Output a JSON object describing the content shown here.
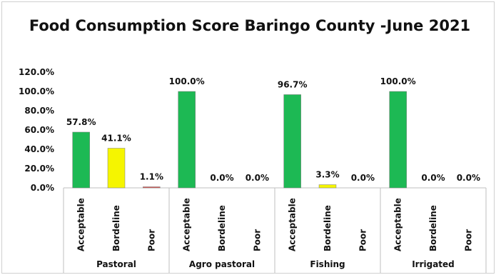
{
  "chart_data": {
    "type": "bar",
    "title": "Food Consumption Score Baringo County -June 2021",
    "ylim": [
      0,
      120
    ],
    "yticks": [
      "0.0%",
      "20.0%",
      "40.0%",
      "60.0%",
      "80.0%",
      "100.0%",
      "120.0%"
    ],
    "groups": [
      {
        "name": "Pastoral",
        "categories": [
          "Acceptable",
          "Bordeline",
          "Poor"
        ],
        "values": [
          57.8,
          41.1,
          1.1
        ],
        "labels": [
          "57.8%",
          "41.1%",
          "1.1%"
        ]
      },
      {
        "name": "Agro pastoral",
        "categories": [
          "Acceptable",
          "Bordeline",
          "Poor"
        ],
        "values": [
          100.0,
          0.0,
          0.0
        ],
        "labels": [
          "100.0%",
          "0.0%",
          "0.0%"
        ]
      },
      {
        "name": "Fishing",
        "categories": [
          "Acceptable",
          "Bordeline",
          "Poor"
        ],
        "values": [
          96.7,
          3.3,
          0.0
        ],
        "labels": [
          "96.7%",
          "3.3%",
          "0.0%"
        ]
      },
      {
        "name": "Irrigated",
        "categories": [
          "Acceptable",
          "Bordeline",
          "Poor"
        ],
        "values": [
          100.0,
          0.0,
          0.0
        ],
        "labels": [
          "100.0%",
          "0.0%",
          "0.0%"
        ]
      }
    ],
    "colors": {
      "Acceptable": "#1db954",
      "Bordeline": "#f5f500",
      "Poor": "#d9534f"
    },
    "grid": false,
    "legend": "none"
  }
}
